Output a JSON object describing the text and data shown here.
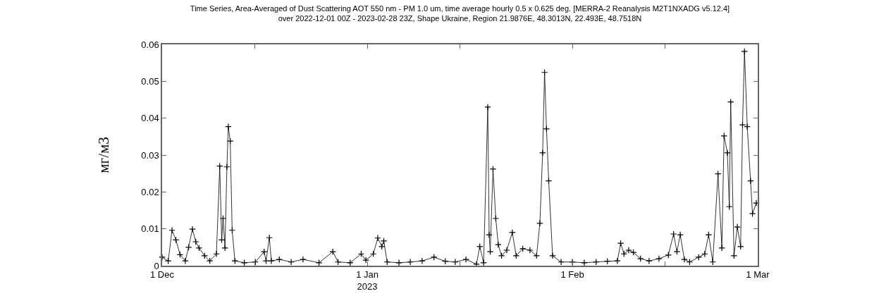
{
  "chart_data": {
    "type": "line",
    "title": "Time Series, Area-Averaged of Dust Scattering AOT 550 nm - PM 1.0 um, time average hourly 0.5 x 0.625 deg. [MERRA-2 Reanalysis M2T1NXADG v5.12.4]\nover 2022-12-01 00Z - 2023-02-28 23Z, Shape Ukraine, Region 21.9876E, 48.3013N, 22.493E, 48.7518N",
    "ylabel": "мг/м3",
    "x": [
      "2022-12-01T00:00",
      "2022-12-01T22:00",
      "2022-12-02T12:00",
      "2022-12-03T02:00",
      "2022-12-03T17:00",
      "2022-12-04T12:00",
      "2022-12-05T00:00",
      "2022-12-05T14:00",
      "2022-12-06T02:00",
      "2022-12-06T14:00",
      "2022-12-07T10:00",
      "2022-12-08T05:00",
      "2022-12-09T05:00",
      "2022-12-09T17:00",
      "2022-12-10T00:00",
      "2022-12-10T05:00",
      "2022-12-10T12:00",
      "2022-12-10T19:00",
      "2022-12-11T00:00",
      "2022-12-11T07:00",
      "2022-12-11T14:00",
      "2022-12-12T00:00",
      "2022-12-13T10:00",
      "2022-12-15T02:00",
      "2022-12-16T10:00",
      "2022-12-16T17:00",
      "2022-12-17T05:00",
      "2022-12-17T12:00",
      "2022-12-18T17:00",
      "2022-12-20T12:00",
      "2022-12-22T07:00",
      "2022-12-24T17:00",
      "2022-12-26T19:00",
      "2022-12-27T14:00",
      "2022-12-29T10:00",
      "2022-12-31T02:00",
      "2022-12-31T19:00",
      "2023-01-01T22:00",
      "2023-01-02T14:00",
      "2023-01-03T05:00",
      "2023-01-03T12:00",
      "2023-01-04T00:00",
      "2023-01-05T19:00",
      "2023-01-07T12:00",
      "2023-01-09T07:00",
      "2023-01-11T02:00",
      "2023-01-12T19:00",
      "2023-01-14T07:00",
      "2023-01-15T22:00",
      "2023-01-17T12:00",
      "2023-01-18T00:00",
      "2023-01-18T14:00",
      "2023-01-19T05:00",
      "2023-01-19T10:00",
      "2023-01-19T14:00",
      "2023-01-20T00:00",
      "2023-01-20T10:00",
      "2023-01-20T19:00",
      "2023-01-21T07:00",
      "2023-01-22T02:00",
      "2023-01-22T22:00",
      "2023-01-23T12:00",
      "2023-01-24T12:00",
      "2023-01-25T14:00",
      "2023-01-26T14:00",
      "2023-01-27T02:00",
      "2023-01-27T12:00",
      "2023-01-27T19:00",
      "2023-01-28T02:00",
      "2023-01-28T10:00",
      "2023-01-29T00:00",
      "2023-01-30T07:00",
      "2023-02-01T00:00",
      "2023-02-02T19:00",
      "2023-02-04T14:00",
      "2023-02-06T07:00",
      "2023-02-07T19:00",
      "2023-02-08T07:00",
      "2023-02-08T19:00",
      "2023-02-09T12:00",
      "2023-02-10T05:00",
      "2023-02-11T07:00",
      "2023-02-12T14:00",
      "2023-02-14T02:00",
      "2023-02-15T12:00",
      "2023-02-16T07:00",
      "2023-02-16T19:00",
      "2023-02-17T07:00",
      "2023-02-17T22:00",
      "2023-02-18T17:00",
      "2023-02-20T02:00",
      "2023-02-21T00:00",
      "2023-02-21T14:00",
      "2023-02-22T05:00",
      "2023-02-23T00:00",
      "2023-02-23T14:00",
      "2023-02-23T22:00",
      "2023-02-24T10:00",
      "2023-02-24T17:00",
      "2023-02-24T22:00",
      "2023-02-25T10:00",
      "2023-02-25T22:00",
      "2023-02-26T10:00",
      "2023-02-26T17:00",
      "2023-02-27T00:00",
      "2023-02-27T10:00",
      "2023-02-27T22:00",
      "2023-02-28T05:00",
      "2023-02-28T19:00"
    ],
    "series": [
      {
        "color": "#000000",
        "values": [
          0.0023,
          0.0013,
          0.0096,
          0.007,
          0.003,
          0.0013,
          0.005,
          0.0099,
          0.0065,
          0.0048,
          0.0027,
          0.0013,
          0.0032,
          0.027,
          0.007,
          0.0128,
          0.0048,
          0.0268,
          0.0377,
          0.0338,
          0.0096,
          0.0013,
          0.0008,
          0.001,
          0.0038,
          0.0013,
          0.0076,
          0.0013,
          0.0017,
          0.001,
          0.0017,
          0.0008,
          0.0038,
          0.001,
          0.0008,
          0.0032,
          0.0015,
          0.0032,
          0.0075,
          0.0052,
          0.0067,
          0.001,
          0.0008,
          0.001,
          0.0013,
          0.0023,
          0.0012,
          0.001,
          0.0017,
          0.0004,
          0.0052,
          0.0008,
          0.043,
          0.0084,
          0.0038,
          0.0262,
          0.0128,
          0.0057,
          0.0027,
          0.0042,
          0.009,
          0.0027,
          0.0046,
          0.0042,
          0.0027,
          0.0115,
          0.0306,
          0.0524,
          0.0371,
          0.023,
          0.0027,
          0.001,
          0.001,
          0.0008,
          0.001,
          0.0012,
          0.0013,
          0.0061,
          0.0032,
          0.0042,
          0.0036,
          0.0019,
          0.0013,
          0.0019,
          0.0029,
          0.0086,
          0.0038,
          0.0084,
          0.0017,
          0.001,
          0.0023,
          0.0032,
          0.0084,
          0.001,
          0.0249,
          0.0048,
          0.0352,
          0.0306,
          0.016,
          0.0444,
          0.0027,
          0.0105,
          0.0052,
          0.0382,
          0.0581,
          0.0377,
          0.023,
          0.0141,
          0.017
        ]
      }
    ],
    "xlim": [
      "2022-12-01",
      "2023-03-01"
    ],
    "xticks": [
      {
        "value": "2022-12-01",
        "label": "1 Dec"
      },
      {
        "value": "2022-12-15",
        "label": null
      },
      {
        "value": "2023-01-01",
        "label": "1 Jan\n2023"
      },
      {
        "value": "2023-01-15",
        "label": null
      },
      {
        "value": "2023-02-01",
        "label": "1 Feb"
      },
      {
        "value": "2023-02-15",
        "label": null
      },
      {
        "value": "2023-03-01",
        "label": "1 Mar"
      }
    ],
    "ylim": [
      0,
      0.06
    ],
    "yticks": [
      0,
      0.01,
      0.02,
      0.03,
      0.04,
      0.05,
      0.06
    ],
    "grid": false,
    "marker": "cross",
    "line_style": "solid"
  }
}
